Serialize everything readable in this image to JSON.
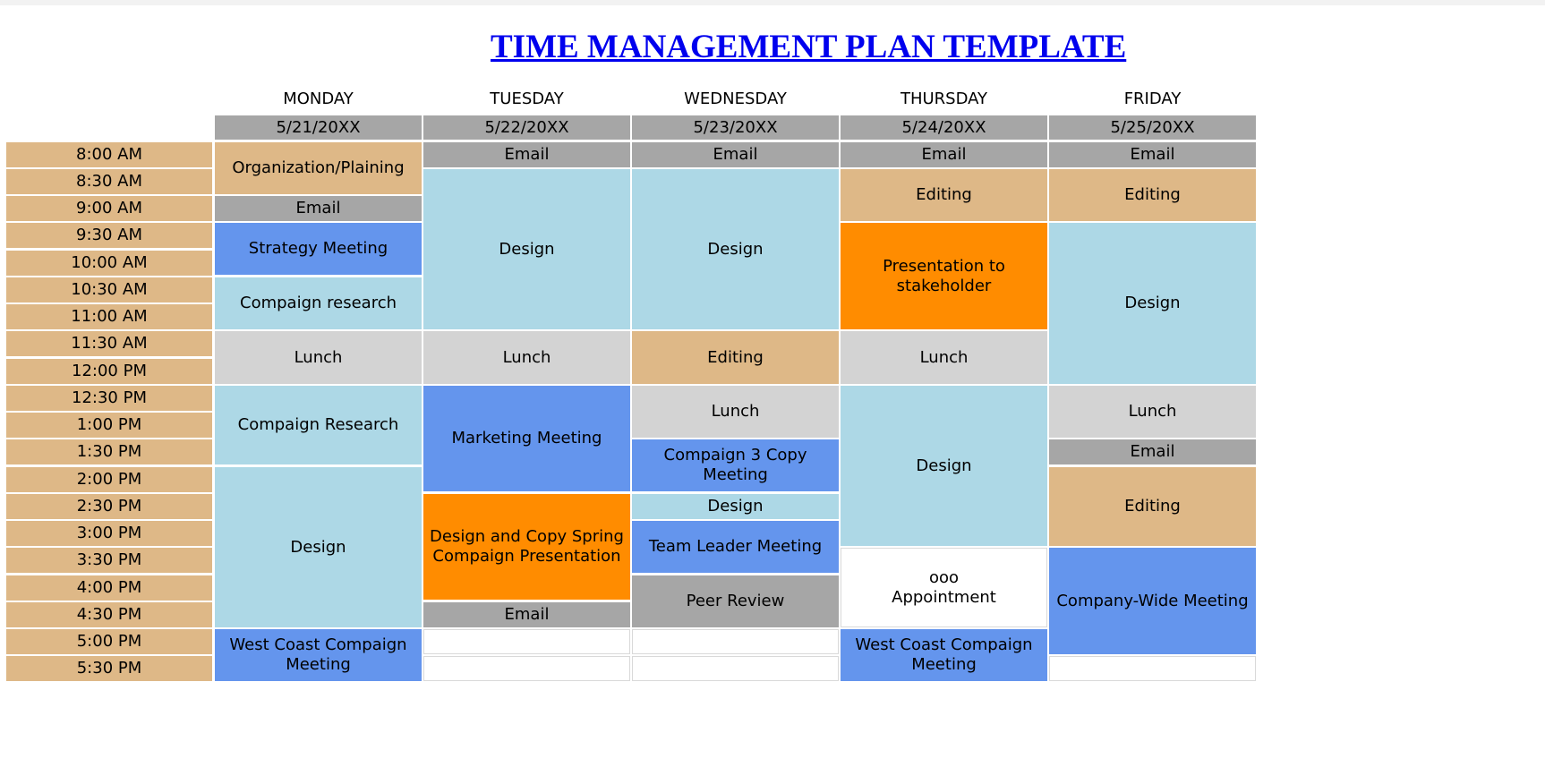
{
  "title": "TIME MANAGEMENT PLAN TEMPLATE",
  "colors": {
    "email_gray": "#a6a6a6",
    "tan": "#deb887",
    "light_blue": "#add8e6",
    "blue": "#6495ed",
    "orange": "#ff8c00",
    "light_gray": "#d3d3d3",
    "link_blue": "#0000ee"
  },
  "days": [
    {
      "name": "MONDAY",
      "date": "5/21/20XX"
    },
    {
      "name": "TUESDAY",
      "date": "5/22/20XX"
    },
    {
      "name": "WEDNESDAY",
      "date": "5/23/20XX"
    },
    {
      "name": "THURSDAY",
      "date": "5/24/20XX"
    },
    {
      "name": "FRIDAY",
      "date": "5/25/20XX"
    }
  ],
  "times": [
    "8:00 AM",
    "8:30 AM",
    "9:00 AM",
    "9:30 AM",
    "10:00 AM",
    "10:30 AM",
    "11:00 AM",
    "11:30 AM",
    "12:00 PM",
    "12:30 PM",
    "1:00 PM",
    "1:30 PM",
    "2:00 PM",
    "2:30 PM",
    "3:00 PM",
    "3:30 PM",
    "4:00 PM",
    "4:30 PM",
    "5:00 PM",
    "5:30 PM"
  ],
  "events": {
    "monday": [
      "Organization/Plaining",
      "Email",
      "Strategy Meeting",
      "Compaign research",
      "Lunch",
      "Compaign Research",
      "Design",
      "West Coast Compaign Meeting"
    ],
    "tuesday": [
      "Email",
      "Design",
      "Lunch",
      "Marketing Meeting",
      "Design and Copy Spring Compaign Presentation",
      "Email"
    ],
    "wednesday": [
      "Email",
      "Design",
      "Editing",
      "Lunch",
      "Compaign 3 Copy Meeting",
      "Design",
      "Team Leader Meeting",
      "Peer Review"
    ],
    "thursday": [
      "Email",
      "Editing",
      "Presentation to stakeholder",
      "Lunch",
      "Design",
      "ooo\nAppointment",
      "West Coast Compaign Meeting"
    ],
    "friday": [
      "Email",
      "Editing",
      "Design",
      "Lunch",
      "Email",
      "Editing",
      "Company-Wide Meeting"
    ]
  }
}
